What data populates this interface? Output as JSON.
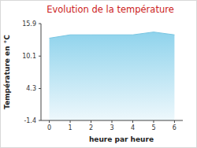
{
  "chart_data": {
    "type": "area",
    "title": "Evolution de la température",
    "x_label": "heure par heure",
    "y_label": "Température en °C",
    "x": [
      0,
      1,
      2,
      3,
      4,
      5,
      6
    ],
    "values": [
      13.3,
      13.9,
      13.9,
      13.9,
      13.9,
      14.4,
      13.9
    ],
    "color": "#8fd3ec",
    "xlim": [
      -0.4,
      6.4
    ],
    "xticks": [
      0,
      1,
      2,
      3,
      4,
      5,
      6
    ],
    "ylim": [
      -1.4,
      15.9
    ],
    "yticks": [
      -1.4,
      4.3,
      10.1,
      15.9
    ],
    "grid": false
  }
}
